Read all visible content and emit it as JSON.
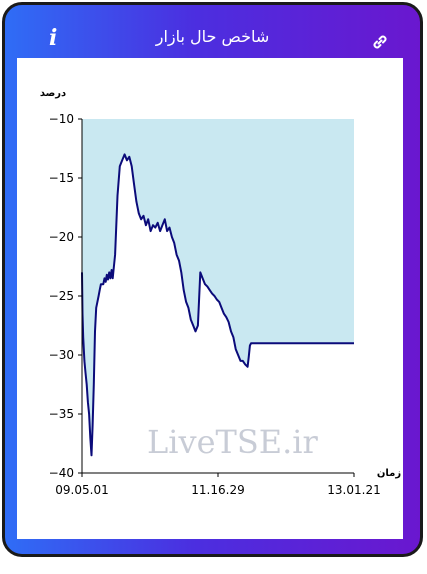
{
  "header": {
    "title": "شاخص حال بازار",
    "info_icon": "info-icon",
    "link_icon": "link-icon"
  },
  "colors": {
    "gradient_start": "#2f6df6",
    "gradient_end": "#6a17cf",
    "plot_fill": "#c9e8f1",
    "line": "#0b0b7a"
  },
  "chart_data": {
    "type": "area",
    "title": "",
    "ylabel": "درصد",
    "xlabel": "زمان",
    "ylim": [
      -40,
      -10
    ],
    "yticks": [
      -10,
      -15,
      -20,
      -25,
      -30,
      -35,
      -40
    ],
    "xticks": [
      "09.05.01",
      "11.16.29",
      "13.01.21"
    ],
    "grid": false,
    "watermark": "LiveTSE.ir",
    "series": [
      {
        "x": [
          0,
          0.02,
          0.05,
          0.1,
          0.15,
          0.2,
          0.25,
          0.3,
          0.35,
          0.4,
          0.45,
          0.5,
          0.55,
          0.6,
          0.65,
          0.7,
          0.75,
          0.8,
          0.85,
          0.9,
          0.95,
          1,
          1.05,
          1.1,
          1.15,
          1.2,
          1.25,
          1.3,
          1.4,
          1.5,
          1.6,
          1.7,
          1.8,
          1.9,
          2,
          2.1,
          2.2,
          2.3,
          2.4,
          2.5,
          2.6,
          2.7,
          2.8,
          2.9,
          3,
          3.1,
          3.2,
          3.3,
          3.4,
          3.5,
          3.6,
          3.7,
          3.8,
          3.9,
          4,
          4.1,
          4.2,
          4.3,
          4.4,
          4.5,
          4.6,
          4.7,
          4.8,
          4.9,
          5,
          5.1,
          5.2,
          5.3,
          5.4,
          5.5,
          5.6,
          5.7,
          5.8,
          5.9,
          6,
          6.1,
          6.2,
          6.3,
          6.4,
          6.5,
          6.6,
          6.7,
          6.8,
          6.9,
          7,
          7.05,
          7.1,
          7.15,
          7.2,
          7.3,
          7.4,
          7.5,
          7.6,
          7.7,
          7.8,
          7.9,
          8,
          8.1,
          8.2,
          8.3,
          8.4,
          8.5,
          8.6,
          8.7,
          8.8,
          8.9,
          9,
          9.1,
          9.2,
          9.3,
          9.4,
          9.5,
          9.6,
          9.7,
          9.8,
          9.9,
          10,
          10.05,
          10.1,
          10.2,
          10.3,
          10.4,
          10.5,
          10.6,
          10.7,
          10.8,
          10.9,
          11,
          11.1,
          11.2,
          11.3,
          11.4,
          11.5
        ],
        "y": [
          -23,
          -26.5,
          -28.5,
          -30.5,
          -31.5,
          -32.5,
          -34,
          -35,
          -37,
          -38.5,
          -36,
          -32.5,
          -28,
          -26,
          -25.5,
          -25,
          -24.5,
          -24,
          -24,
          -24,
          -23.5,
          -23.8,
          -23.2,
          -23.6,
          -23,
          -23.5,
          -22.8,
          -23.5,
          -21.5,
          -16.5,
          -14,
          -13.5,
          -13,
          -13.5,
          -13.2,
          -14,
          -15.5,
          -17,
          -18,
          -18.5,
          -18.2,
          -19,
          -18.5,
          -19.5,
          -19,
          -19.2,
          -18.8,
          -19.5,
          -19,
          -18.5,
          -19.5,
          -19.2,
          -20,
          -20.5,
          -21.5,
          -22,
          -23,
          -24.5,
          -25.5,
          -26,
          -27,
          -27.5,
          -28,
          -27.5,
          -23,
          -23.5,
          -24,
          -24.2,
          -24.5,
          -24.8,
          -25,
          -25.3,
          -25.5,
          -26,
          -26.5,
          -26.8,
          -27.2,
          -28,
          -28.5,
          -29.5,
          -30,
          -30.5,
          -30.5,
          -30.8,
          -31,
          -30.2,
          -29.2,
          -29,
          -29,
          -29,
          -29,
          -29,
          -29,
          -29,
          -29,
          -29,
          -29,
          -29,
          -29,
          -29,
          -29,
          -29,
          -29,
          -29,
          -29,
          -29,
          -29,
          -29,
          -29,
          -29,
          -29,
          -29,
          -29,
          -29,
          -29,
          -29,
          -29,
          -29,
          -29,
          -29,
          -29,
          -29,
          -29,
          -29,
          -29,
          -29,
          -29,
          -29,
          -29,
          -29,
          -29,
          -29,
          -29
        ],
        "xrange": [
          0,
          11.5
        ]
      }
    ]
  }
}
